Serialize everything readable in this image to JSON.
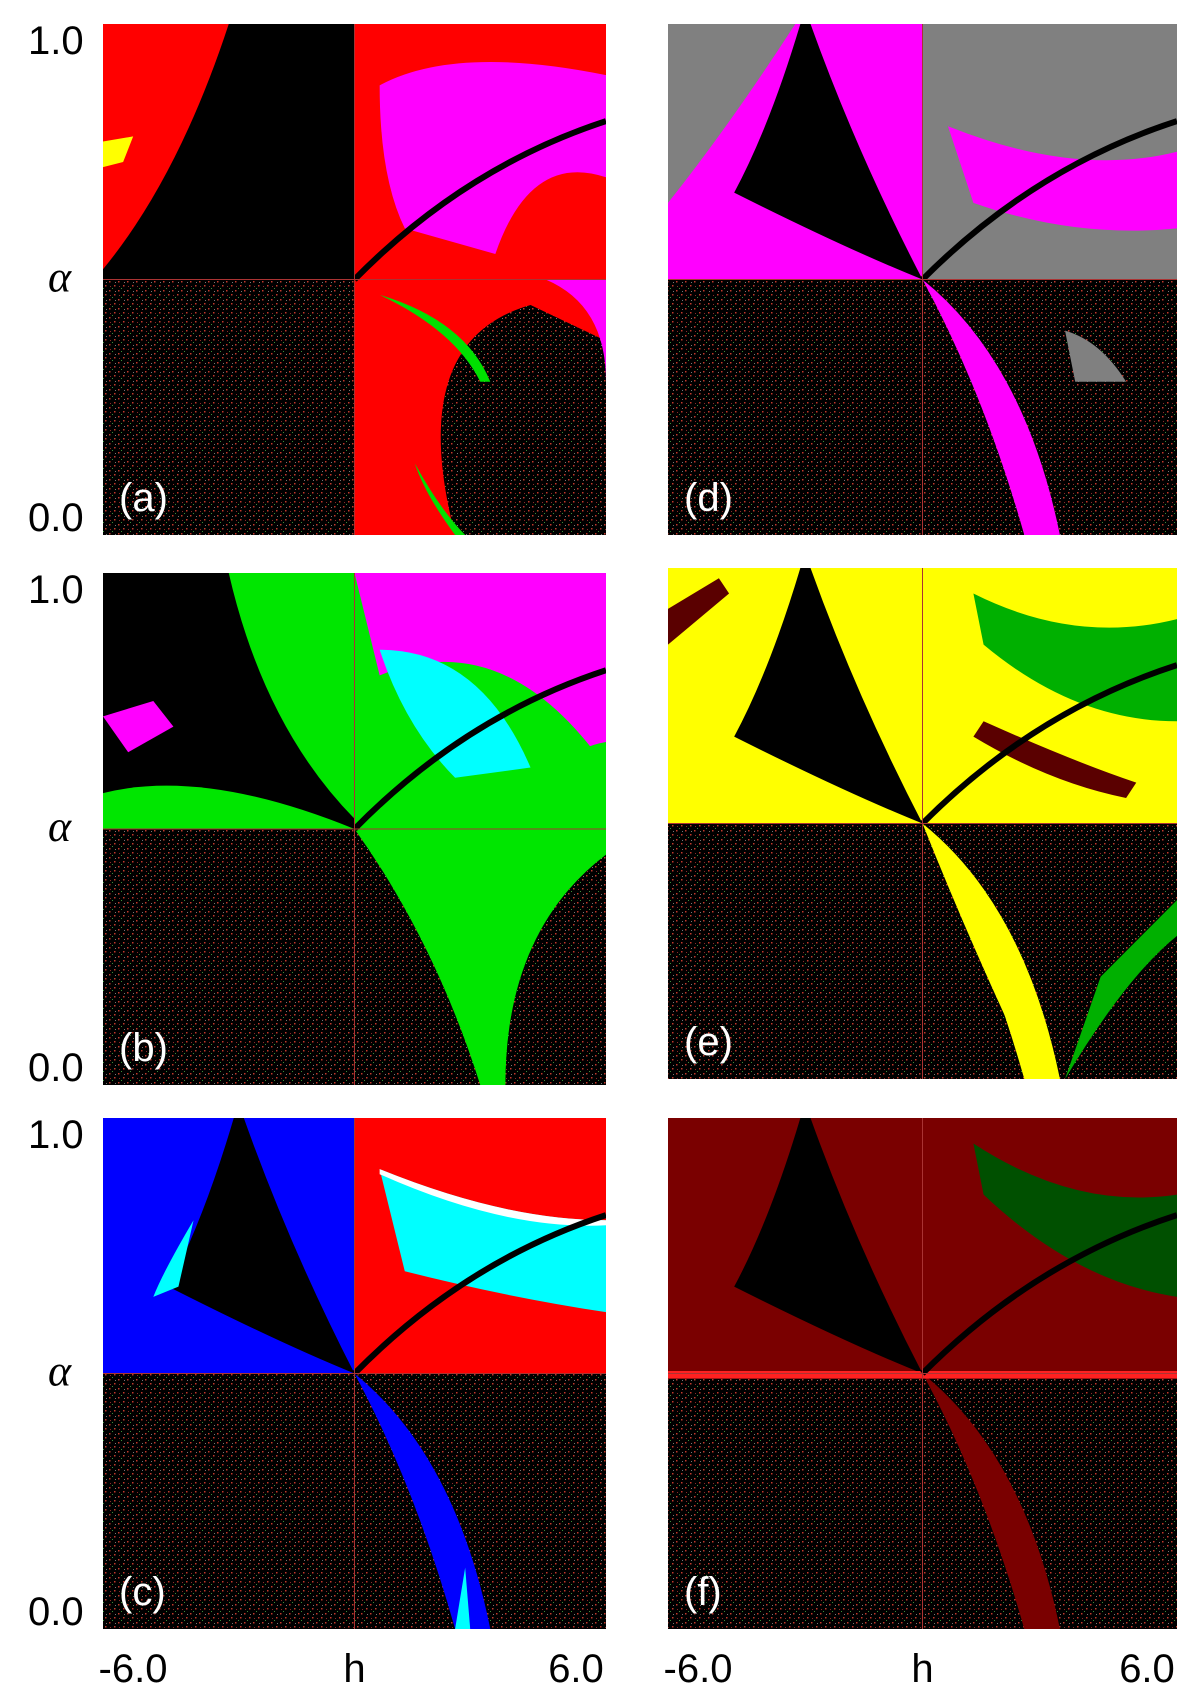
{
  "y_axis_labels": {
    "top": "1.0",
    "middle": "α",
    "bottom": "0.0"
  },
  "x_axis_labels": {
    "left": "-6.0",
    "middle": "h",
    "right": "6.0"
  },
  "panels": [
    {
      "label": "(a)"
    },
    {
      "label": "(b)"
    },
    {
      "label": "(c)"
    },
    {
      "label": "(d)"
    },
    {
      "label": "(e)"
    },
    {
      "label": "(f)"
    }
  ]
}
